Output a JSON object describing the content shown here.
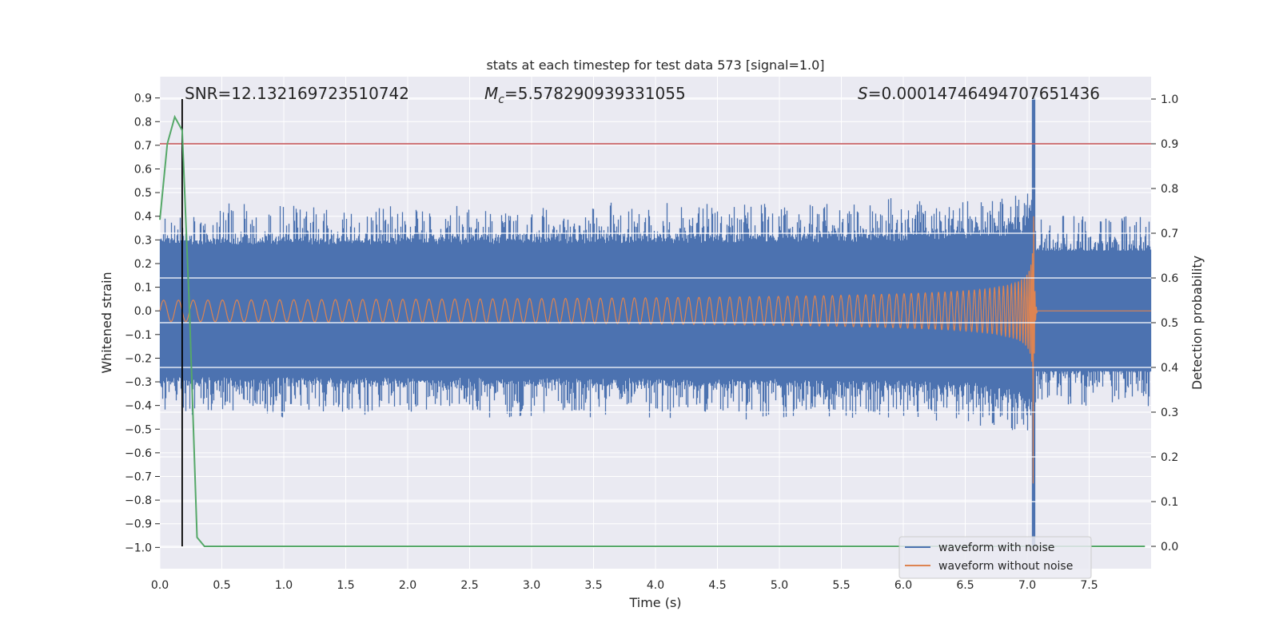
{
  "chart_data": {
    "type": "line",
    "title": "stats at each timestep for test data 573 [signal=1.0]",
    "xlabel": "Time (s)",
    "ylabel_left": "Whitened strain",
    "ylabel_right": "Detection probability",
    "xlim": [
      0.0,
      8.0
    ],
    "ylim_left": [
      -1.09,
      0.99
    ],
    "ylim_right": [
      -0.05,
      1.05
    ],
    "x_ticks": [
      "0.0",
      "0.5",
      "1.0",
      "1.5",
      "2.0",
      "2.5",
      "3.0",
      "3.5",
      "4.0",
      "4.5",
      "5.0",
      "5.5",
      "6.0",
      "6.5",
      "7.0",
      "7.5"
    ],
    "y_ticks_left": [
      "0.9",
      "0.8",
      "0.7",
      "0.6",
      "0.5",
      "0.4",
      "0.3",
      "0.2",
      "0.1",
      "0.0",
      "−0.1",
      "−0.2",
      "−0.3",
      "−0.4",
      "−0.5",
      "−0.6",
      "−0.7",
      "−0.8",
      "−0.9",
      "−1.0"
    ],
    "y_ticks_right": [
      "0.0",
      "0.1",
      "0.2",
      "0.3",
      "0.4",
      "0.5",
      "0.6",
      "0.7",
      "0.8",
      "0.9",
      "1.0"
    ],
    "grid": true,
    "legend_position": "lower-right",
    "annotations": {
      "snr": "SNR=12.132169723510742",
      "mc_symbol": "M",
      "mc_sub": "c",
      "mc_value": "=5.578290939331055",
      "s_symbol": "S",
      "s_value": "=0.00014746494707651436"
    },
    "series": [
      {
        "name": "waveform with noise",
        "color": "#4c72b0",
        "noise_band": 0.3,
        "peak_min": -1.0,
        "peak_max": 0.9,
        "merger_time": 7.05
      },
      {
        "name": "waveform without noise",
        "color": "#dd8452",
        "initial_amplitude": 0.045,
        "peak_amplitude": 0.58,
        "merger_time": 7.05
      },
      {
        "color": "#55a868",
        "x": [
          0.0,
          0.06,
          0.12,
          0.18,
          0.24,
          0.3,
          0.36,
          0.42,
          7.95
        ],
        "y": [
          0.73,
          0.9,
          0.96,
          0.93,
          0.52,
          0.02,
          0.0,
          0.0,
          0.0
        ]
      }
    ],
    "threshold_line": {
      "color": "#c44e52",
      "y": 0.9
    },
    "vertical_marker": {
      "color": "#000000",
      "x": 0.18
    },
    "colors": {
      "plot_bg": "#eaeaf2",
      "grid": "#ffffff"
    }
  }
}
